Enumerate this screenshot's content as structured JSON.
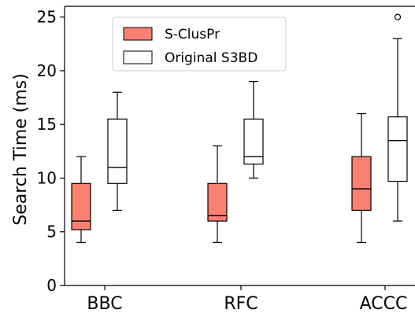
{
  "chart_data": {
    "type": "box",
    "title": "",
    "xlabel": "",
    "ylabel": "Search Time (ms)",
    "ylim": [
      0,
      26
    ],
    "yticks": [
      0,
      5,
      10,
      15,
      20,
      25
    ],
    "ytick_labels": [
      "0",
      "5",
      "10",
      "15",
      "20",
      "25"
    ],
    "categories": [
      "BBC",
      "RFC",
      "ACCC"
    ],
    "legend": {
      "position": "upper-center"
    },
    "grid": false,
    "series": [
      {
        "name": "S-ClusPr",
        "color": "#fa8072",
        "boxes": [
          {
            "category": "BBC",
            "whisker_low": 4,
            "q1": 5.2,
            "median": 6,
            "q3": 9.5,
            "whisker_high": 12,
            "outliers": []
          },
          {
            "category": "RFC",
            "whisker_low": 4,
            "q1": 6,
            "median": 6.5,
            "q3": 9.5,
            "whisker_high": 13,
            "outliers": []
          },
          {
            "category": "ACCC",
            "whisker_low": 4,
            "q1": 7,
            "median": 9,
            "q3": 12,
            "whisker_high": 16,
            "outliers": []
          }
        ]
      },
      {
        "name": "Original S3BD",
        "color": "#ffffff",
        "boxes": [
          {
            "category": "BBC",
            "whisker_low": 7,
            "q1": 9.5,
            "median": 11,
            "q3": 15.5,
            "whisker_high": 18,
            "outliers": []
          },
          {
            "category": "RFC",
            "whisker_low": 10,
            "q1": 11.3,
            "median": 12,
            "q3": 15.5,
            "whisker_high": 19,
            "outliers": []
          },
          {
            "category": "ACCC",
            "whisker_low": 6,
            "q1": 9.7,
            "median": 13.5,
            "q3": 15.7,
            "whisker_high": 23,
            "outliers": [
              25
            ]
          }
        ]
      }
    ]
  }
}
